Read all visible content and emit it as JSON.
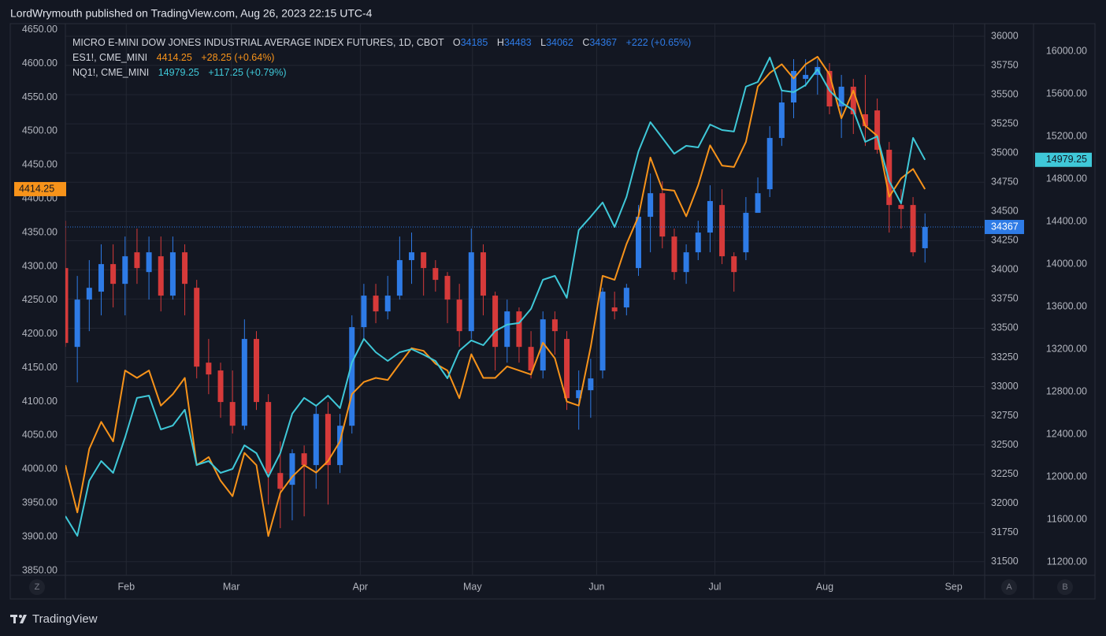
{
  "header": {
    "publisher": "LordWrymouth published on TradingView.com, Aug 26, 2023 22:15 UTC-4",
    "brand": "TradingView"
  },
  "ui": {
    "zoom_button": "Z",
    "auto_button": "A",
    "second_axis_button": "B"
  },
  "chart_data": {
    "type": "candlestick",
    "title": "MICRO E-MINI DOW JONES INDUSTRIAL AVERAGE INDEX FUTURES, 1D, CBOT",
    "ohlc_labels": [
      "O",
      "H",
      "L",
      "C"
    ],
    "change": "+222",
    "change_pct": "(+0.65%)",
    "up_color": "#2e7be6",
    "down_color": "#d63a3a",
    "grid": true,
    "xlim": [
      0,
      77
    ],
    "xticks": [
      {
        "value": 5.1,
        "label": "Feb"
      },
      {
        "value": 13.9,
        "label": "Mar"
      },
      {
        "value": 24.7,
        "label": "Apr"
      },
      {
        "value": 34.1,
        "label": "May"
      },
      {
        "value": 44.5,
        "label": "Jun"
      },
      {
        "value": 54.4,
        "label": "Jul"
      },
      {
        "value": 63.6,
        "label": "Aug"
      },
      {
        "value": 74.4,
        "label": "Sep"
      }
    ],
    "candles": {
      "open": [
        34015,
        33340,
        33745,
        33813,
        34049,
        33880,
        34150,
        33981,
        34116,
        33779,
        34150,
        33846,
        33205,
        33138,
        32868,
        32665,
        33408,
        32868,
        32260,
        32159,
        32429,
        32328,
        32766,
        32328,
        32665,
        33509,
        33779,
        33644,
        33779,
        34083,
        34150,
        34015,
        33948,
        33745,
        33475,
        34150,
        33779,
        33340,
        33644,
        33340,
        33138,
        33576,
        33408,
        32901,
        32969,
        33138,
        33678,
        33678,
        34015,
        34454,
        34656,
        34285,
        33981,
        34150,
        34319,
        34555,
        34116,
        34150,
        34488,
        34690,
        35129,
        35433,
        35635,
        35669,
        35703,
        35399,
        35568,
        35332,
        35365,
        35028,
        34555,
        34555,
        34185
      ],
      "high": [
        34420,
        33948,
        34083,
        34218,
        34218,
        34285,
        34353,
        34285,
        34285,
        34285,
        34218,
        33914,
        33408,
        33205,
        33138,
        33576,
        33475,
        32935,
        32530,
        32463,
        32496,
        32834,
        32868,
        32766,
        33610,
        33880,
        33880,
        33948,
        34285,
        34319,
        34150,
        34083,
        33981,
        33880,
        34353,
        34218,
        33813,
        33745,
        33678,
        33475,
        33644,
        33644,
        33475,
        33138,
        33239,
        33846,
        33813,
        33880,
        34555,
        34825,
        34758,
        34353,
        34218,
        34420,
        34724,
        34690,
        34150,
        34623,
        34791,
        35230,
        35534,
        35804,
        35804,
        35804,
        35770,
        35669,
        35635,
        35669,
        35467,
        35095,
        34690,
        34623,
        34483
      ],
      "low": [
        33340,
        33036,
        33475,
        33610,
        33678,
        33610,
        33880,
        33745,
        33644,
        33745,
        33610,
        33070,
        32935,
        32733,
        32598,
        32631,
        32800,
        31990,
        31788,
        31855,
        31889,
        32125,
        31990,
        32260,
        32598,
        33408,
        33543,
        33576,
        33745,
        33880,
        33779,
        33813,
        33543,
        33340,
        33408,
        33610,
        33138,
        33205,
        33205,
        33070,
        33070,
        33273,
        32800,
        32631,
        32733,
        33070,
        33576,
        33610,
        33948,
        34150,
        34184,
        33914,
        33880,
        34083,
        34150,
        34049,
        33813,
        34083,
        34488,
        34623,
        35061,
        35298,
        35568,
        35500,
        35332,
        35129,
        35163,
        35061,
        34994,
        34319,
        34353,
        34116,
        34062
      ],
      "close": [
        33374,
        33745,
        33846,
        34049,
        33880,
        34116,
        34015,
        34150,
        33779,
        34150,
        33880,
        33171,
        33104,
        32868,
        32665,
        33408,
        32868,
        32260,
        32125,
        32429,
        32328,
        32766,
        32328,
        32665,
        33509,
        33779,
        33644,
        33779,
        34083,
        34150,
        34015,
        33914,
        33745,
        33475,
        34150,
        33779,
        33340,
        33644,
        33340,
        33138,
        33576,
        33475,
        32901,
        32969,
        33070,
        33813,
        33644,
        33846,
        34454,
        34656,
        34285,
        33981,
        34150,
        34319,
        34589,
        34116,
        33981,
        34488,
        34656,
        35129,
        35433,
        35703,
        35669,
        35737,
        35399,
        35568,
        35332,
        35230,
        35028,
        34555,
        34521,
        34150,
        34367
      ]
    },
    "series": [
      {
        "name": "ES1!, CME_MINI",
        "color": "#f7931a",
        "axis": "y",
        "change": "+28.25",
        "change_pct": "(+0.64%)",
        "values": [
          4006,
          3936,
          4030,
          4070,
          4041,
          4146,
          4135,
          4146,
          4094,
          4111,
          4135,
          4006,
          4018,
          3983,
          3960,
          4024,
          4006,
          3901,
          3965,
          3989,
          4006,
          3995,
          4012,
          4041,
          4111,
          4129,
          4135,
          4132,
          4156,
          4179,
          4175,
          4156,
          4146,
          4105,
          4170,
          4135,
          4135,
          4152,
          4146,
          4140,
          4187,
          4164,
          4100,
          4094,
          4181,
          4286,
          4280,
          4333,
          4374,
          4461,
          4414,
          4412,
          4374,
          4420,
          4479,
          4449,
          4447,
          4484,
          4566,
          4586,
          4599,
          4578,
          4599,
          4610,
          4584,
          4519,
          4560,
          4508,
          4493,
          4403,
          4430,
          4444,
          4414.25
        ]
      },
      {
        "name": "NQ1!, CME_MINI",
        "color": "#3fc8d8",
        "axis": "y3",
        "change": "+117.25",
        "change_pct": "(+0.79%)",
        "values": [
          11630,
          11445,
          11963,
          12148,
          12037,
          12370,
          12741,
          12763,
          12445,
          12482,
          12630,
          12111,
          12148,
          12037,
          12074,
          12296,
          12222,
          12000,
          12222,
          12593,
          12741,
          12667,
          12763,
          12645,
          13074,
          13296,
          13170,
          13089,
          13170,
          13200,
          13148,
          13089,
          12926,
          13185,
          13282,
          13237,
          13370,
          13430,
          13445,
          13578,
          13852,
          13889,
          13682,
          14319,
          14445,
          14578,
          14348,
          14630,
          15059,
          15333,
          15185,
          15037,
          15111,
          15096,
          15311,
          15259,
          15245,
          15667,
          15711,
          15941,
          15630,
          15615,
          15682,
          15830,
          15630,
          15519,
          15444,
          15148,
          15200,
          14778,
          14570,
          15185,
          14979.25
        ]
      }
    ],
    "ylim": [
      3843,
      4659
    ],
    "yticks": [
      {
        "value": 3850,
        "label": "3850.00"
      },
      {
        "value": 3900,
        "label": "3900.00"
      },
      {
        "value": 3950,
        "label": "3950.00"
      },
      {
        "value": 4000,
        "label": "4000.00"
      },
      {
        "value": 4050,
        "label": "4050.00"
      },
      {
        "value": 4100,
        "label": "4100.00"
      },
      {
        "value": 4150,
        "label": "4150.00"
      },
      {
        "value": 4200,
        "label": "4200.00"
      },
      {
        "value": 4250,
        "label": "4250.00"
      },
      {
        "value": 4300,
        "label": "4300.00"
      },
      {
        "value": 4350,
        "label": "4350.00"
      },
      {
        "value": 4400,
        "label": "4400.00"
      },
      {
        "value": 4450,
        "label": "4450.00"
      },
      {
        "value": 4500,
        "label": "4500.00"
      },
      {
        "value": 4550,
        "label": "4550.00"
      },
      {
        "value": 4600,
        "label": "4600.00"
      },
      {
        "value": 4650,
        "label": "4650.00"
      }
    ],
    "y2lim": [
      31384,
      36108
    ],
    "y2ticks": [
      31500,
      31750,
      32000,
      32250,
      32500,
      32750,
      33000,
      33250,
      33500,
      33750,
      34000,
      34250,
      34500,
      34750,
      35000,
      35250,
      35500,
      35750,
      36000
    ],
    "y3lim": [
      11074,
      16259
    ],
    "y3ticks": [
      {
        "value": 11200,
        "label": "11200.00"
      },
      {
        "value": 11600,
        "label": "11600.00"
      },
      {
        "value": 12000,
        "label": "12000.00"
      },
      {
        "value": 12400,
        "label": "12400.00"
      },
      {
        "value": 12800,
        "label": "12800.00"
      },
      {
        "value": 13200,
        "label": "13200.00"
      },
      {
        "value": 13600,
        "label": "13600.00"
      },
      {
        "value": 14000,
        "label": "14000.00"
      },
      {
        "value": 14400,
        "label": "14400.00"
      },
      {
        "value": 14800,
        "label": "14800.00"
      },
      {
        "value": 15200,
        "label": "15200.00"
      },
      {
        "value": 15600,
        "label": "15600.00"
      },
      {
        "value": 16000,
        "label": "16000.00"
      }
    ]
  }
}
